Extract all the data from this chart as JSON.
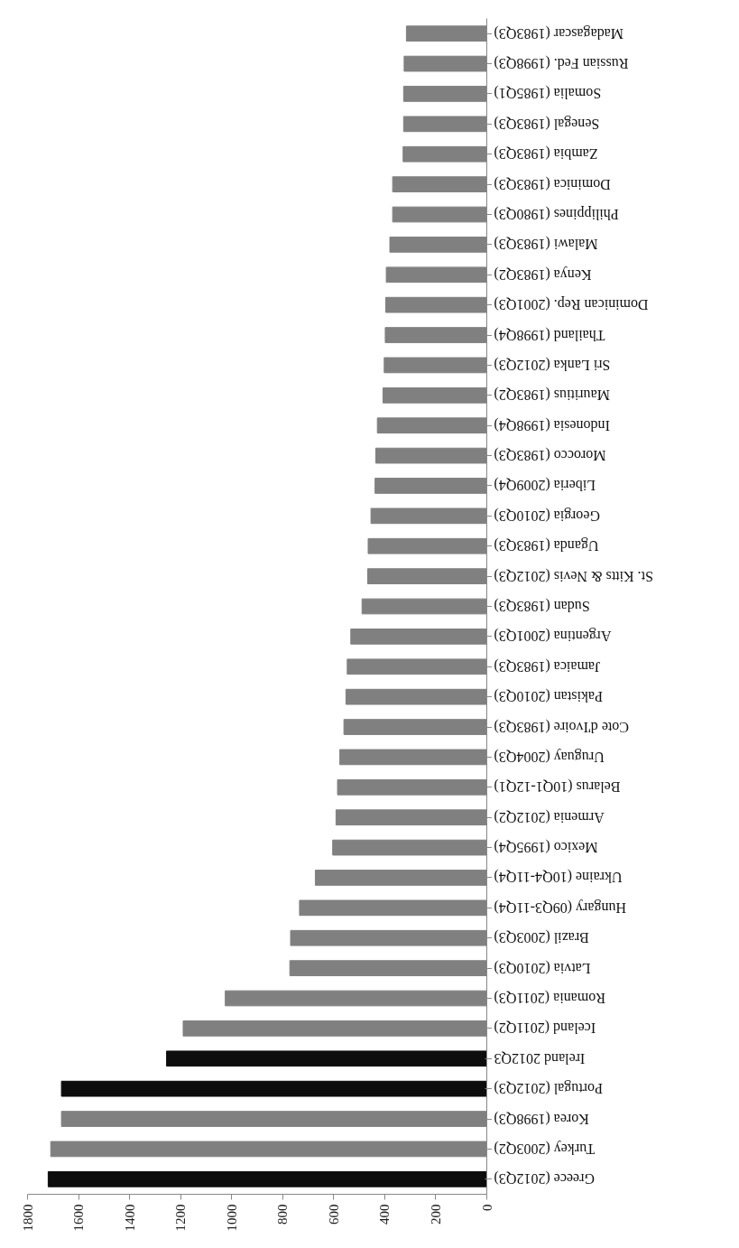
{
  "chart_data": {
    "type": "bar",
    "orientation": "horizontal",
    "categories": [
      "Madagascar (1983Q3)",
      "Russian Fed. (1998Q3)",
      "Somalia (1985Q1)",
      "Senegal (1983Q3)",
      "Zambia (1983Q3)",
      "Dominica (1983Q3)",
      "Philippines (1980Q3)",
      "Malawi (1983Q3)",
      "Kenya (1983Q2)",
      "Dominican Rep. (2001Q3)",
      "Thailand (1998Q4)",
      "Sri Lanka (2012Q3)",
      "Mauritius (1983Q2)",
      "Indonesia (1998Q4)",
      "Morocco (1983Q3)",
      "Liberia (2009Q4)",
      "Georgia (2010Q3)",
      "Uganda (1983Q3)",
      "St. Kitts & Nevis (2012Q3)",
      "Sudan (1983Q3)",
      "Argentina (2001Q3)",
      "Jamaica (1983Q3)",
      "Pakistan (2010Q3)",
      "Cote d'Ivoire (1983Q3)",
      "Uruguay (2004Q3)",
      "Belarus (10Q1-12Q1)",
      "Armenia (2012Q2)",
      "Mexico (1995Q4)",
      "Ukraine (10Q4-11Q4)",
      "Hungary (09Q3-11Q4)",
      "Brazil (2003Q3)",
      "Latvia (2010Q3)",
      "Romania (2011Q3)",
      "Iceland (2011Q2)",
      "Ireland 2012Q3",
      "Portugal (2012Q3)",
      "Korea (1998Q3)",
      "Turkey (2003Q2)",
      "Greece (2012Q3)"
    ],
    "values": [
      315,
      324,
      326,
      326,
      328,
      369,
      369,
      380,
      394,
      396,
      398,
      402,
      407,
      429,
      435,
      438,
      454,
      465,
      467,
      489,
      533,
      547,
      552,
      560,
      576,
      585,
      591,
      604,
      672,
      734,
      769,
      772,
      1025,
      1190,
      1255,
      1667,
      1667,
      1709,
      1719
    ],
    "colors": [
      "#808080",
      "#808080",
      "#808080",
      "#808080",
      "#808080",
      "#808080",
      "#808080",
      "#808080",
      "#808080",
      "#808080",
      "#808080",
      "#808080",
      "#808080",
      "#808080",
      "#808080",
      "#808080",
      "#808080",
      "#808080",
      "#808080",
      "#808080",
      "#808080",
      "#808080",
      "#808080",
      "#808080",
      "#808080",
      "#808080",
      "#808080",
      "#808080",
      "#808080",
      "#808080",
      "#808080",
      "#808080",
      "#808080",
      "#808080",
      "#0d0d0d",
      "#0d0d0d",
      "#808080",
      "#808080",
      "#0d0d0d"
    ],
    "xlim": [
      1800,
      0
    ],
    "xticks": [
      0,
      200,
      400,
      600,
      800,
      1000,
      1200,
      1400,
      1600,
      1800
    ]
  }
}
